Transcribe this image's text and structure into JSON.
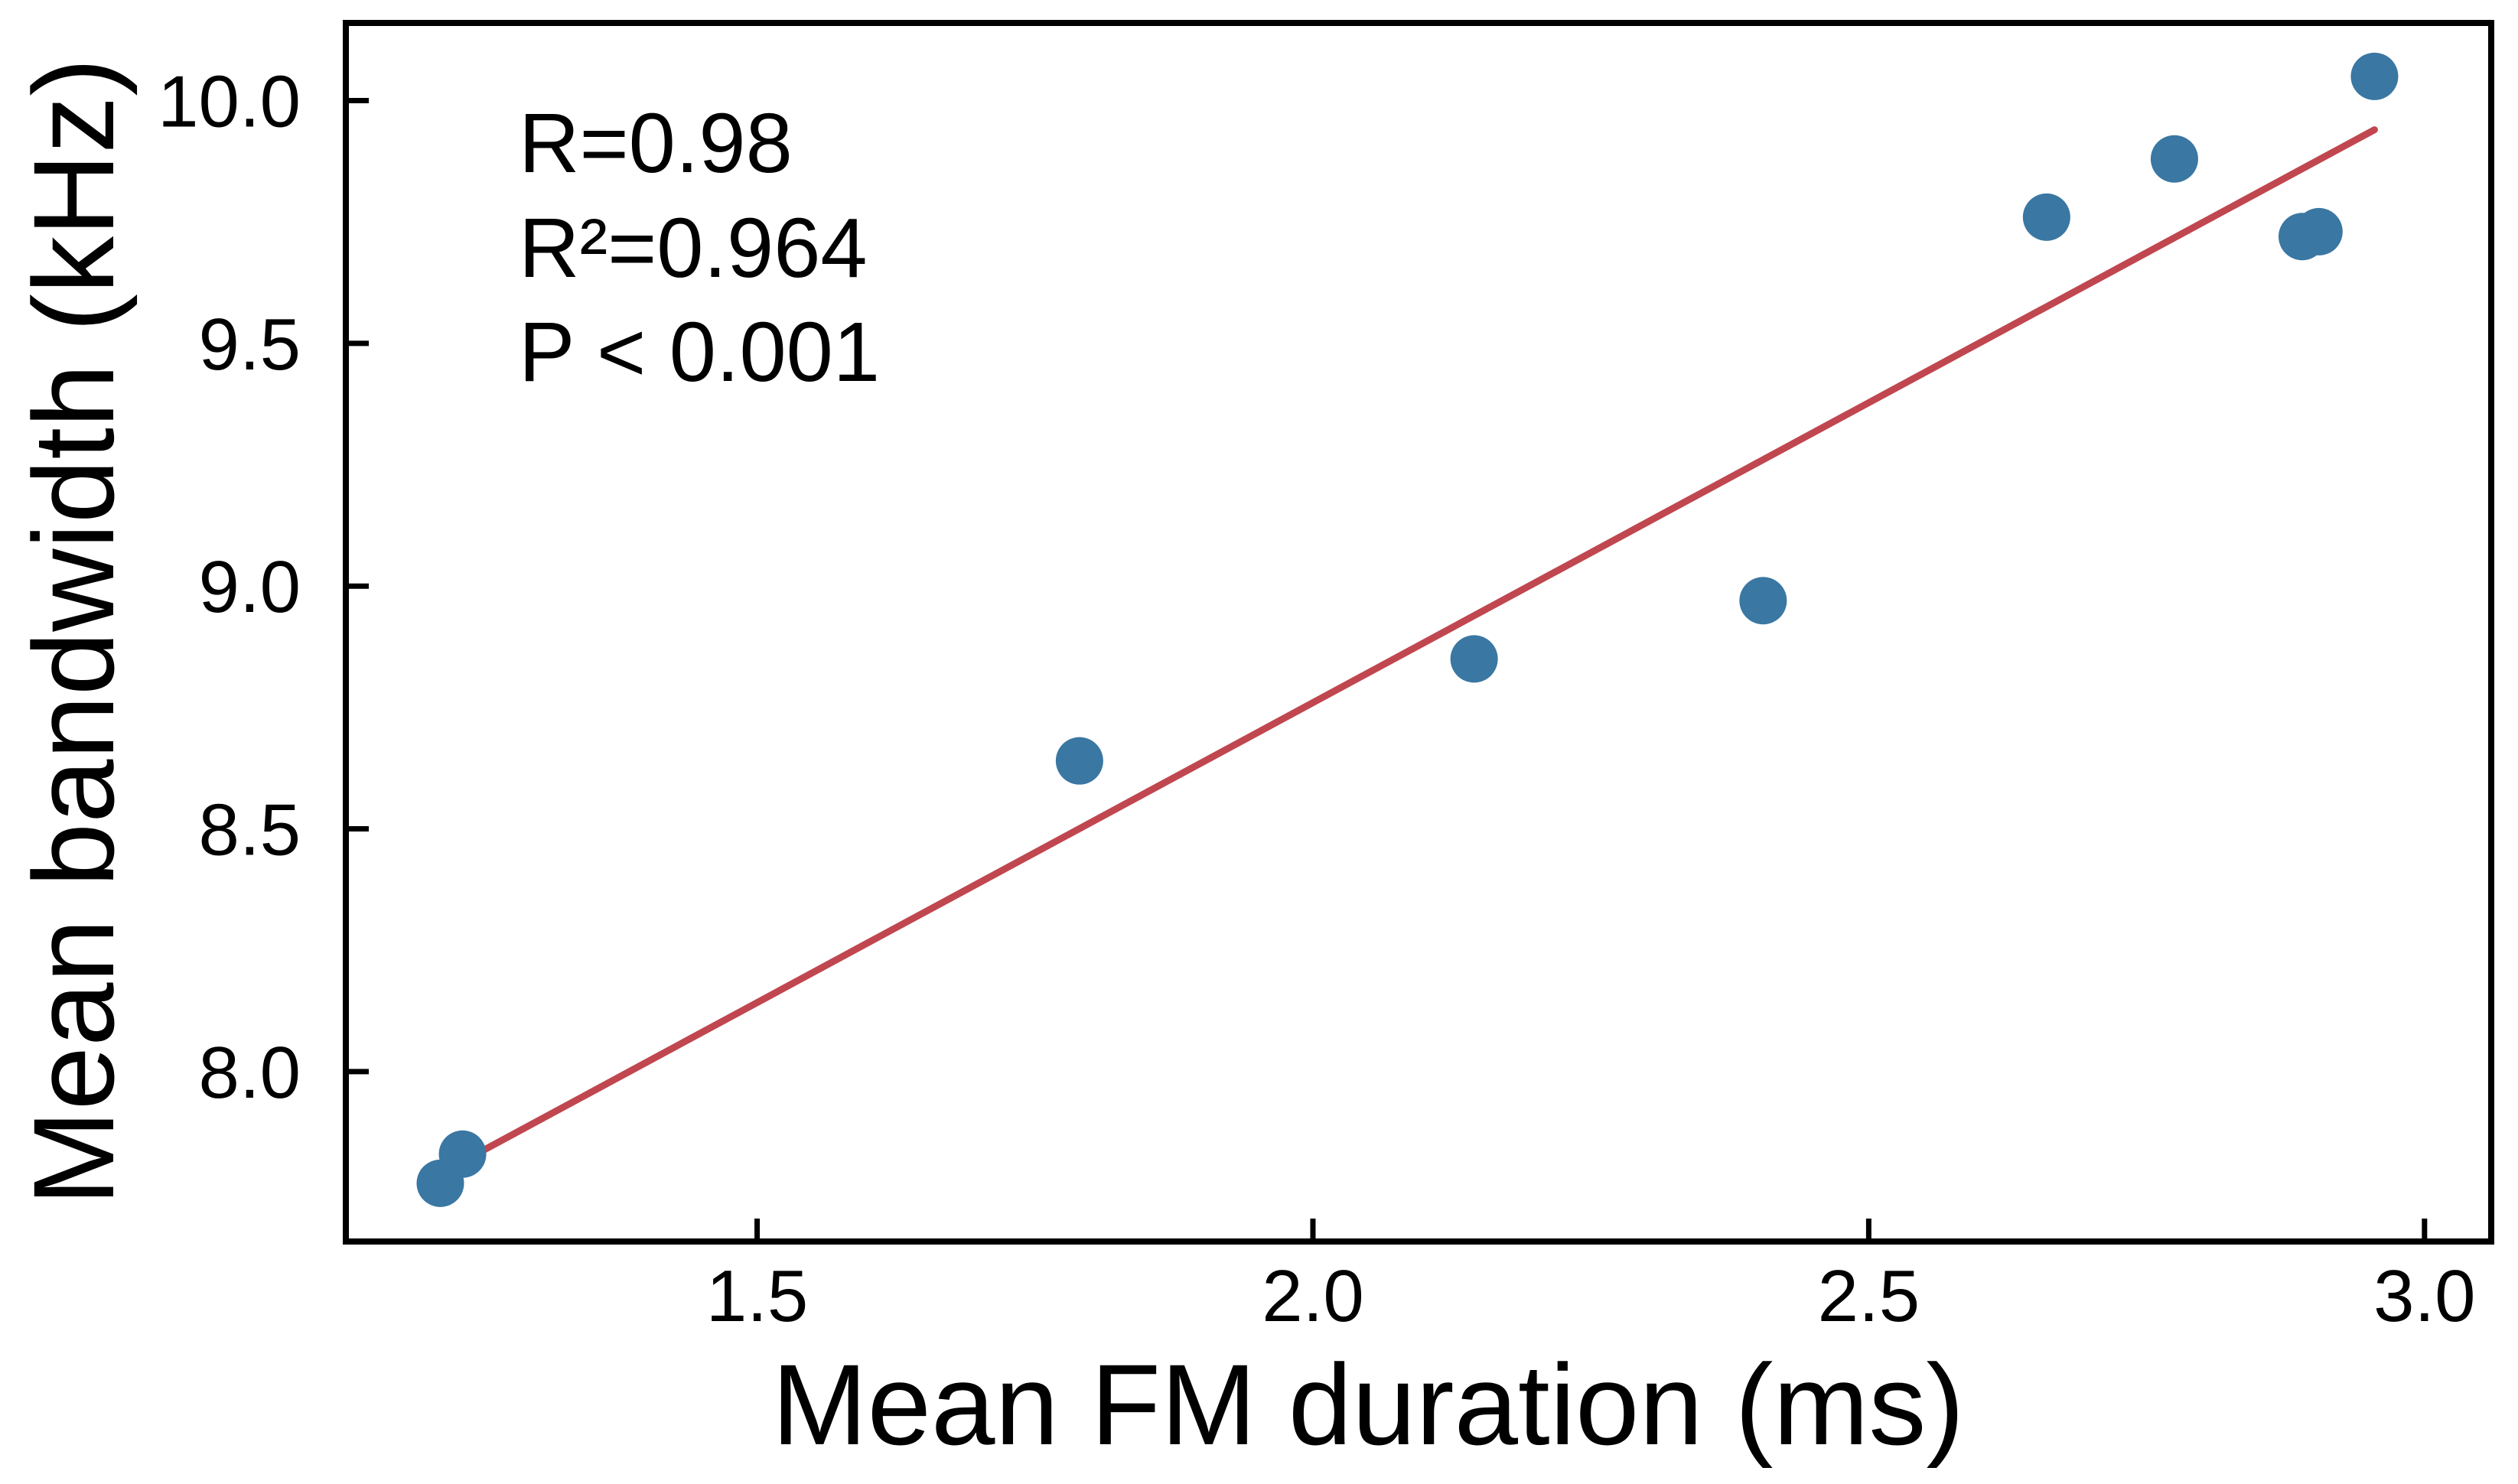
{
  "chart_data": {
    "type": "scatter",
    "title": "",
    "xlabel": "Mean FM duration (ms)",
    "ylabel": "Mean bandwidth (kHz)",
    "xlim": [
      1.13,
      3.06
    ],
    "ylim": [
      7.65,
      10.16
    ],
    "xticks": [
      1.5,
      2.0,
      2.5,
      3.0
    ],
    "xtick_labels": [
      "1.5",
      "2.0",
      "2.5",
      "3.0"
    ],
    "yticks": [
      8.0,
      8.5,
      9.0,
      9.5,
      10.0
    ],
    "ytick_labels": [
      "8.0",
      "8.5",
      "9.0",
      "9.5",
      "10.0"
    ],
    "grid": false,
    "legend": "none",
    "colors": {
      "points": "#3a77a3",
      "fit_line": "#c0474f",
      "axes": "#000000"
    },
    "series": [
      {
        "type": "scatter",
        "x": [
          1.215,
          1.235,
          1.79,
          2.145,
          2.405,
          2.66,
          2.775,
          2.89,
          2.905,
          2.955
        ],
        "y": [
          7.77,
          7.83,
          8.64,
          8.85,
          8.97,
          9.76,
          9.88,
          9.72,
          9.73,
          10.05
        ]
      },
      {
        "type": "line",
        "x": [
          1.215,
          2.955
        ],
        "y": [
          7.79,
          9.94
        ]
      }
    ],
    "annotations": [
      "R=0.98",
      "R²=0.964",
      "P < 0.001"
    ]
  }
}
